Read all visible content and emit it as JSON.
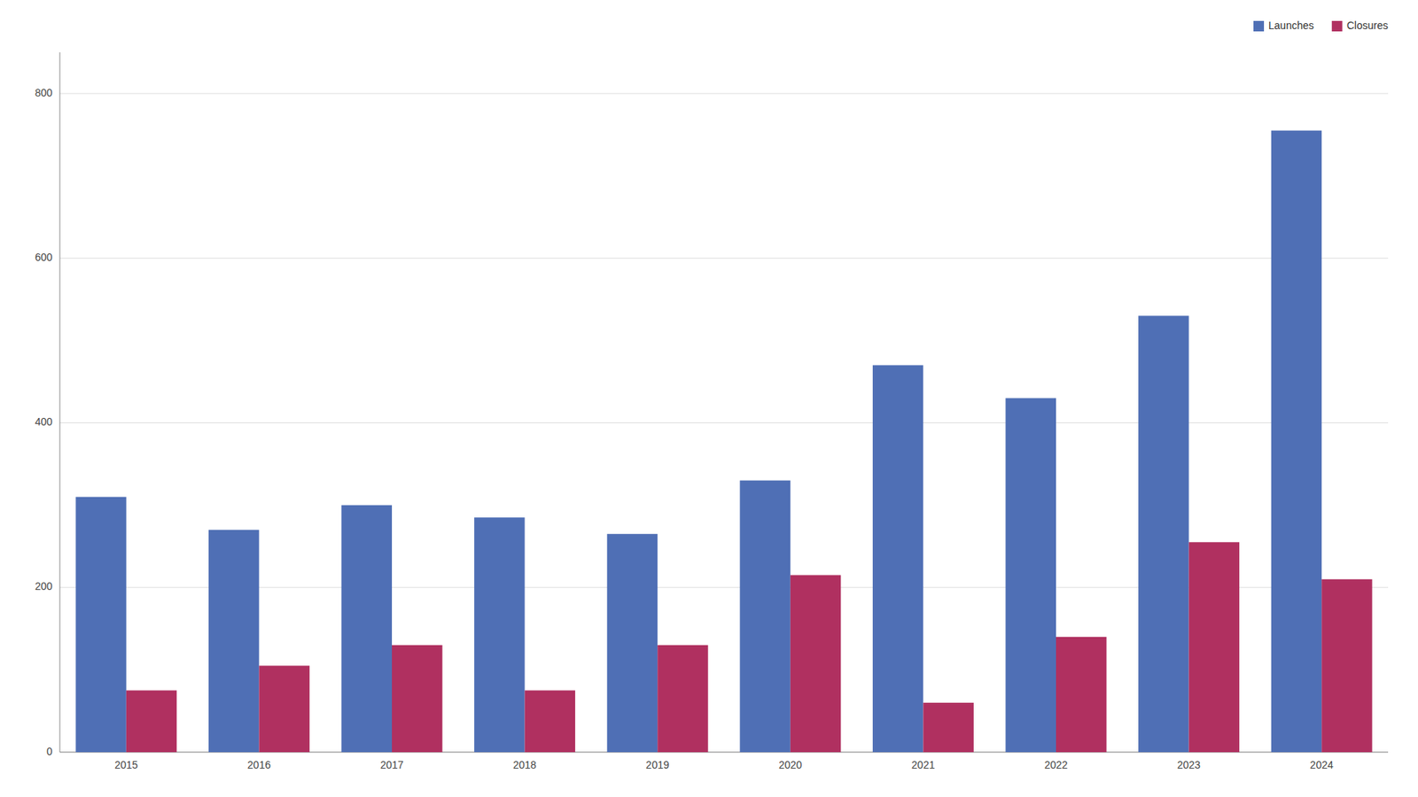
{
  "chart_data": {
    "type": "bar",
    "categories": [
      "2015",
      "2016",
      "2017",
      "2018",
      "2019",
      "2020",
      "2021",
      "2022",
      "2023",
      "2024"
    ],
    "series": [
      {
        "name": "Launches",
        "color": "#4f6fb5",
        "values": [
          310,
          270,
          300,
          285,
          265,
          330,
          470,
          430,
          530,
          755
        ]
      },
      {
        "name": "Closures",
        "color": "#b03060",
        "values": [
          75,
          105,
          130,
          75,
          130,
          215,
          60,
          140,
          255,
          210
        ]
      }
    ],
    "ylim": [
      0,
      850
    ],
    "yticks": [
      0,
      200,
      400,
      600,
      800
    ],
    "grid": true,
    "legend": "upper right"
  }
}
